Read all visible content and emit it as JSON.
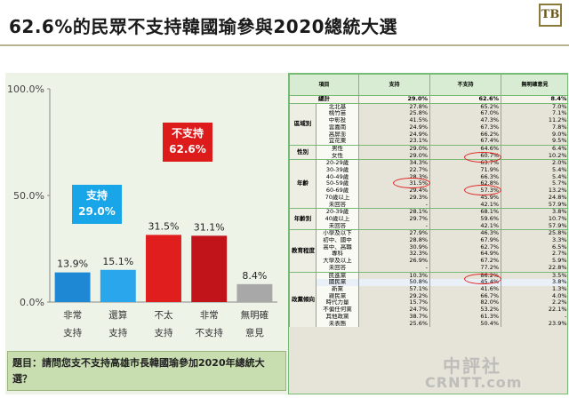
{
  "page": {
    "title": "62.6%的民眾不支持韓國瑜參與2020總統大選",
    "logo_text": "TB",
    "question": "題目：請問您支不支持高雄市長韓國瑜參加2020年總統大選？",
    "watermark_line1": "中評社",
    "watermark_line2": "CRNTT.com"
  },
  "chart_data": {
    "type": "bar",
    "categories": [
      "非常\n支持",
      "還算\n支持",
      "不太\n支持",
      "非常\n不支持",
      "無明確\n意見"
    ],
    "values": [
      13.9,
      15.1,
      31.5,
      31.1,
      8.4
    ],
    "value_labels": [
      "13.9%",
      "15.1%",
      "31.5%",
      "31.1%",
      "8.4%"
    ],
    "ylim": [
      0,
      100
    ],
    "yticks": [
      "0.0%",
      "50.0%",
      "100.0%"
    ],
    "colors": [
      "#1e88d4",
      "#2aa6ec",
      "#e01e1e",
      "#c0141a",
      "#a8a8a8"
    ],
    "callouts": [
      {
        "label": "支持",
        "value": "29.0%",
        "color": "#19a6e8"
      },
      {
        "label": "不支持",
        "value": "62.6%",
        "color": "#dd1b1b"
      }
    ]
  },
  "table": {
    "headers": [
      "項目",
      "支持",
      "不支持",
      "無明確意見"
    ],
    "total": {
      "label": "總計",
      "values": [
        "29.0%",
        "62.6%",
        "8.4%"
      ]
    },
    "groups": [
      {
        "name": "區域別",
        "rows": [
          [
            "北北基",
            "27.8%",
            "65.2%",
            "7.0%"
          ],
          [
            "桃竹苗",
            "25.8%",
            "67.0%",
            "7.1%"
          ],
          [
            "中彰投",
            "41.5%",
            "47.3%",
            "11.2%"
          ],
          [
            "雲嘉南",
            "24.9%",
            "67.3%",
            "7.8%"
          ],
          [
            "高屏澎",
            "24.9%",
            "66.2%",
            "9.0%"
          ],
          [
            "宜花東",
            "23.1%",
            "67.4%",
            "9.5%"
          ]
        ]
      },
      {
        "name": "性別",
        "rows": [
          [
            "男性",
            "29.0%",
            "64.6%",
            "6.4%"
          ],
          [
            "女性",
            "29.0%",
            "60.7%",
            "10.2%"
          ]
        ]
      },
      {
        "name": "年齡",
        "rows": [
          [
            "20-29歲",
            "34.3%",
            "63.7%",
            "2.0%"
          ],
          [
            "30-39歲",
            "22.7%",
            "71.9%",
            "5.4%"
          ],
          [
            "40-49歲",
            "28.3%",
            "66.3%",
            "5.4%"
          ],
          [
            "50-59歲",
            "31.5%",
            "62.8%",
            "5.7%"
          ],
          [
            "60-69歲",
            "29.4%",
            "57.3%",
            "13.2%"
          ],
          [
            "70歲以上",
            "29.3%",
            "45.9%",
            "24.8%"
          ],
          [
            "未回答",
            "-",
            "42.1%",
            "57.9%"
          ]
        ]
      },
      {
        "name": "年齡別",
        "rows": [
          [
            "20-39歲",
            "28.1%",
            "68.1%",
            "3.8%"
          ],
          [
            "40歲以上",
            "29.7%",
            "59.6%",
            "10.7%"
          ],
          [
            "未回答",
            "-",
            "42.1%",
            "57.9%"
          ]
        ]
      },
      {
        "name": "教育程度",
        "rows": [
          [
            "小學及以下",
            "27.9%",
            "46.3%",
            "25.8%"
          ],
          [
            "初中、國中",
            "28.8%",
            "67.9%",
            "3.3%"
          ],
          [
            "高中、高職",
            "30.9%",
            "62.7%",
            "6.5%"
          ],
          [
            "專科",
            "32.3%",
            "64.9%",
            "2.7%"
          ],
          [
            "大學及以上",
            "26.9%",
            "67.2%",
            "5.9%"
          ],
          [
            "未回答",
            "-",
            "77.2%",
            "22.8%"
          ]
        ]
      },
      {
        "name": "政黨傾向",
        "rows": [
          [
            "民進黨",
            "10.3%",
            "86.2%",
            "3.5%"
          ],
          [
            "國民黨",
            "50.8%",
            "45.4%",
            "3.8%"
          ],
          [
            "新黨",
            "57.1%",
            "41.6%",
            "1.3%"
          ],
          [
            "親民黨",
            "29.2%",
            "66.7%",
            "4.0%"
          ],
          [
            "時代力量",
            "15.7%",
            "82.0%",
            "2.2%"
          ],
          [
            "不偏任何黨",
            "24.7%",
            "53.2%",
            "22.1%"
          ],
          [
            "其他政黨",
            "38.7%",
            "61.3%",
            "-"
          ],
          [
            "未表態",
            "25.6%",
            "50.4%",
            "23.9%"
          ]
        ]
      }
    ]
  }
}
